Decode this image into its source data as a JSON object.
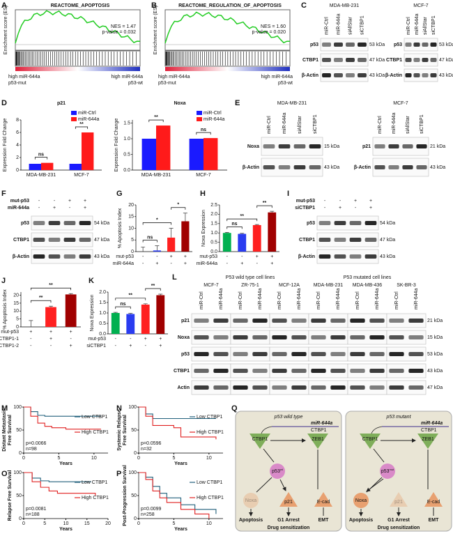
{
  "panels": {
    "A": {
      "label": "A",
      "title": "REACTOME_APOPTOSIS",
      "ylabel": "Enrichment score (ES)",
      "stats": [
        "NES = 1.47",
        "p-value = 0.032"
      ],
      "left": [
        "high miR-644a",
        "p53-mut"
      ],
      "right": [
        "high miR-644a",
        "p53-wt"
      ]
    },
    "B": {
      "label": "B",
      "title": "REACTOME_REGULATION_OF_APOPTOSIS",
      "ylabel": "Enrichment score (ES)",
      "stats": [
        "NES = 1.60",
        "p-value = 0.020"
      ],
      "left": [
        "high miR-644a",
        "p53-mut"
      ],
      "right": [
        "high miR-644a",
        "p53-wt"
      ]
    },
    "C": {
      "label": "C",
      "blots": [
        {
          "cell_line": "MDA-MB-231",
          "lanes": [
            "miR-Ctrl",
            "miR-644a",
            "siAllStar",
            "siCTBP1"
          ],
          "rows": [
            {
              "name": "p53",
              "size": "53 kDa"
            },
            {
              "name": "CTBP1",
              "size": "47 kDa"
            },
            {
              "name": "β-Actin",
              "size": "43 kDa"
            }
          ]
        },
        {
          "cell_line": "MCF-7",
          "lanes": [
            "miR-Ctrl",
            "miR-644a",
            "siAllStar",
            "siCTBP1"
          ],
          "rows": [
            {
              "name": "p53",
              "size": "53 kDa"
            },
            {
              "name": "CTBP1",
              "size": "47 kDa"
            },
            {
              "name": "β-Actin",
              "size": "43 kDa"
            }
          ]
        }
      ]
    },
    "D": {
      "label": "D",
      "charts": [
        {
          "type": "bar",
          "title": "p21",
          "ylabel": "Expression Fold Change",
          "categories": [
            "MDA-MB-231",
            "MCF-7"
          ],
          "series": [
            {
              "name": "miR-Ctrl",
              "color": "#1a1aff",
              "values": [
                1,
                1
              ]
            },
            {
              "name": "miR-644a",
              "color": "#ff1a1a",
              "values": [
                1.15,
                6
              ]
            }
          ],
          "ylim": [
            0,
            8
          ],
          "yticks": [
            0,
            2,
            4,
            6,
            8
          ],
          "annotations": [
            "ns",
            "**"
          ]
        },
        {
          "type": "bar",
          "title": "Noxa",
          "ylabel": "Expression Fold Change",
          "categories": [
            "MDA-MB-231",
            "MCF-7"
          ],
          "series": [
            {
              "name": "miR-Ctrl",
              "color": "#1a1aff",
              "values": [
                1,
                1
              ]
            },
            {
              "name": "miR-644a",
              "color": "#ff1a1a",
              "values": [
                1.42,
                1.02
              ]
            }
          ],
          "ylim": [
            0,
            1.6
          ],
          "yticks": [
            {
              "value": 0,
              "label": "0.0"
            },
            0.5,
            {
              "value": 1,
              "label": "1.0"
            },
            1.5
          ],
          "annotations": [
            "**",
            "ns"
          ]
        }
      ]
    },
    "E": {
      "label": "E",
      "blots": [
        {
          "cell_line": "MDA-MB-231",
          "lanes": [
            "miR-Ctrl",
            "miR-644a",
            "siAllStar",
            "siCTBP1"
          ],
          "rows": [
            {
              "name": "Noxa",
              "size": "15 kDa"
            },
            {
              "name": "β-Actin",
              "size": "43 kDa"
            }
          ]
        },
        {
          "cell_line": "MCF-7",
          "lanes": [
            "miR-Ctrl",
            "miR-644a",
            "siAllStar",
            "siCTBP1"
          ],
          "rows": [
            {
              "name": "p21",
              "size": "21 kDa"
            },
            {
              "name": "β-Actin",
              "size": "43 kDa"
            }
          ]
        }
      ]
    },
    "F": {
      "label": "F",
      "conditions": [
        {
          "name": "mut-p53",
          "signs": [
            "-",
            "-",
            "+",
            "+"
          ]
        },
        {
          "name": "miR-644a",
          "signs": [
            "-",
            "+",
            "-",
            "+"
          ]
        }
      ],
      "rows": [
        {
          "name": "p53",
          "size": "54 kDa"
        },
        {
          "name": "CTBP1",
          "size": "47 kDa"
        },
        {
          "name": "β-Actin",
          "size": "43 kDa"
        }
      ]
    },
    "G": {
      "label": "G",
      "chart_data": {
        "type": "bar",
        "ylabel": "% Apoptosis Index",
        "values": [
          0,
          0.5,
          6,
          13
        ],
        "errors": [
          2,
          2,
          4,
          3.5
        ],
        "colors": [
          "#00b050",
          "#2a3cf0",
          "#ff2020",
          "#a00000"
        ],
        "conditions": [
          {
            "name": "mut-p53",
            "signs": [
              "-",
              "-",
              "+",
              "+"
            ]
          },
          {
            "name": "miR-644a",
            "signs": [
              "-",
              "+",
              "-",
              "+"
            ]
          }
        ],
        "ylim": [
          0,
          20
        ],
        "yticks": [
          0,
          5,
          10,
          15,
          20
        ],
        "annotations": [
          "ns",
          "*",
          "*"
        ]
      }
    },
    "H": {
      "label": "H",
      "chart_data": {
        "type": "bar",
        "ylabel": "Noxa Expression",
        "values": [
          1,
          0.95,
          1.42,
          2.1
        ],
        "errors": [
          0.03,
          0.03,
          0.03,
          0.06
        ],
        "colors": [
          "#00b050",
          "#2a3cf0",
          "#ff2020",
          "#a00000"
        ],
        "conditions": [
          {
            "name": "mut-p53",
            "signs": [
              "-",
              "-",
              "+",
              "+"
            ]
          },
          {
            "name": "miR-644a",
            "signs": [
              "-",
              "+",
              "-",
              "+"
            ]
          }
        ],
        "ylim": [
          0,
          2.5
        ],
        "yticks": [
          {
            "value": 0,
            "label": "0.0"
          },
          0.5,
          {
            "value": 1,
            "label": "1.0"
          },
          1.5,
          {
            "value": 2,
            "label": "2.0"
          },
          2.5
        ],
        "annotations": [
          "ns",
          "**",
          "**"
        ]
      }
    },
    "I": {
      "label": "I",
      "conditions": [
        {
          "name": "mut-p53",
          "signs": [
            "-",
            "-",
            "+",
            "+"
          ]
        },
        {
          "name": "siCTBP1",
          "signs": [
            "-",
            "+",
            "-",
            "+"
          ]
        }
      ],
      "rows": [
        {
          "name": "p53",
          "size": "54 kDa"
        },
        {
          "name": "CTBP1",
          "size": "47 kDa"
        },
        {
          "name": "β-Actin",
          "size": "43 kDa"
        }
      ]
    },
    "J": {
      "label": "J",
      "chart_data": {
        "type": "bar",
        "ylabel": "% Apoptosis Index",
        "values": [
          0,
          12.5,
          20.5
        ],
        "errors": [
          4,
          0.6,
          0.5
        ],
        "colors": [
          "#00b050",
          "#ff2020",
          "#a00000"
        ],
        "conditions": [
          {
            "name": "mut-p53",
            "signs": [
              "+",
              "+",
              "+"
            ]
          },
          {
            "name": "siCTBP1-1",
            "signs": [
              "-",
              "+",
              "-"
            ]
          },
          {
            "name": "siCTBP1-2",
            "signs": [
              "-",
              "-",
              "+"
            ]
          }
        ],
        "ylim": [
          0,
          22
        ],
        "yticks": [
          0,
          5,
          10,
          15,
          20
        ],
        "annotations": [
          "**",
          "**"
        ]
      }
    },
    "K": {
      "label": "K",
      "chart_data": {
        "type": "bar",
        "ylabel": "Noxa Expression",
        "values": [
          1,
          0.95,
          1.4,
          1.85
        ],
        "errors": [
          0.03,
          0.03,
          0.04,
          0.05
        ],
        "colors": [
          "#00b050",
          "#2a3cf0",
          "#ff2020",
          "#a00000"
        ],
        "conditions": [
          {
            "name": "mut-p53",
            "signs": [
              "-",
              "-",
              "+",
              "+"
            ]
          },
          {
            "name": "siCTBP1",
            "signs": [
              "-",
              "+",
              "-",
              "+"
            ]
          }
        ],
        "ylim": [
          0,
          2
        ],
        "yticks": [
          {
            "value": 0,
            "label": "0.0"
          },
          0.5,
          {
            "value": 1,
            "label": "1.0"
          },
          1.5,
          {
            "value": 2,
            "label": "2.0"
          }
        ],
        "annotations": [
          "ns",
          "**",
          "**"
        ]
      }
    },
    "L": {
      "label": "L",
      "groups": [
        "P53 wild type cell lines",
        "P53 mutated cell lines"
      ],
      "cell_lines": [
        "MCF-7",
        "ZR-75-1",
        "MCF-12A",
        "MDA-MB-231",
        "MDA-MB-436",
        "SK-BR-3"
      ],
      "lanes": [
        "miR-Ctrl",
        "miR-644a"
      ],
      "rows": [
        {
          "name": "p21",
          "size": "21 kDa"
        },
        {
          "name": "Noxa",
          "size": "15 kDa"
        },
        {
          "name": "p53",
          "size": "53 kDa"
        },
        {
          "name": "CTBP1",
          "size": "43 kDa"
        },
        {
          "name": "Actin",
          "size": "47 kDa"
        }
      ]
    },
    "M": {
      "label": "M",
      "chart_data": {
        "type": "line",
        "ylabel": [
          "Distant Metastasis",
          "Free Survival"
        ],
        "xlabel": "Years",
        "annotations": [
          "p=0.0066",
          "n=98"
        ],
        "xlim": [
          0,
          12
        ],
        "xticks": [
          0,
          5,
          10
        ],
        "ylim": [
          0,
          100
        ],
        "yticks": [
          0,
          50,
          100
        ],
        "series": [
          {
            "name": "Low CTBP1",
            "color": "#1f5f7a",
            "x": [
              0,
              1,
              2,
              3,
              4,
              5,
              11
            ],
            "values": [
              100,
              90,
              82,
              80,
              80,
              80,
              80
            ]
          },
          {
            "name": "High CTBP1",
            "color": "#e02020",
            "x": [
              0,
              1,
              2,
              3,
              4,
              6,
              11
            ],
            "values": [
              100,
              80,
              65,
              58,
              55,
              52,
              52
            ]
          }
        ]
      }
    },
    "N": {
      "label": "N",
      "chart_data": {
        "type": "line",
        "ylabel": [
          "Systemic Relapse",
          "Free Survival"
        ],
        "xlabel": "Years",
        "annotations": [
          "p=0.0596",
          "n=32"
        ],
        "xlim": [
          0,
          12
        ],
        "xticks": [
          0,
          5,
          10
        ],
        "ylim": [
          0,
          100
        ],
        "yticks": [
          0,
          50,
          100
        ],
        "series": [
          {
            "name": "Low CTBP1",
            "color": "#1f5f7a",
            "x": [
              0,
              1,
              2,
              11
            ],
            "values": [
              100,
              85,
              75,
              75
            ]
          },
          {
            "name": "High CTBP1",
            "color": "#e02020",
            "x": [
              0,
              1,
              2,
              5,
              6,
              11
            ],
            "values": [
              100,
              80,
              60,
              55,
              35,
              30
            ]
          }
        ]
      }
    },
    "O": {
      "label": "O",
      "chart_data": {
        "type": "line",
        "ylabel": [
          "Relapse Free Survival"
        ],
        "xlabel": "Years",
        "annotations": [
          "p=0.0081",
          "n=188"
        ],
        "xlim": [
          0,
          20
        ],
        "xticks": [
          0,
          5,
          10,
          15,
          20
        ],
        "ylim": [
          0,
          100
        ],
        "yticks": [
          0,
          50,
          100
        ],
        "series": [
          {
            "name": "Low CTBP1",
            "color": "#1f5f7a",
            "x": [
              0,
              2,
              4,
              6,
              16
            ],
            "values": [
              100,
              88,
              82,
              80,
              80
            ]
          },
          {
            "name": "High CTBP1",
            "color": "#e02020",
            "x": [
              0,
              2,
              4,
              6,
              8,
              17
            ],
            "values": [
              100,
              80,
              68,
              60,
              55,
              50
            ]
          }
        ]
      }
    },
    "P": {
      "label": "P",
      "chart_data": {
        "type": "line",
        "ylabel": [
          "Post-Progression Survival"
        ],
        "xlabel": "Years",
        "annotations": [
          "p=0.0099",
          "n=258"
        ],
        "xlim": [
          0,
          12
        ],
        "xticks": [
          0,
          5,
          10
        ],
        "ylim": [
          0,
          100
        ],
        "yticks": [
          0,
          50,
          100
        ],
        "series": [
          {
            "name": "Low CTBP1",
            "color": "#1f5f7a",
            "x": [
              0,
              1,
              2,
              3,
              4,
              6,
              8,
              11
            ],
            "values": [
              100,
              90,
              70,
              55,
              45,
              30,
              20,
              10
            ]
          },
          {
            "name": "High CTBP1",
            "color": "#e02020",
            "x": [
              0,
              1,
              2,
              3,
              4,
              6,
              8,
              10
            ],
            "values": [
              100,
              85,
              60,
              45,
              35,
              20,
              10,
              0
            ]
          }
        ]
      }
    },
    "Q": {
      "label": "Q",
      "sides": [
        {
          "title": "p53 wild type",
          "mirna": "miR-644a",
          "gene": "CTBP1",
          "nodes": [
            "CTBP1",
            "ZEB1",
            {
              "text": "p53",
              "sup": "wt"
            },
            "Noxa",
            "p21",
            "E-cad"
          ],
          "outcomes": [
            "Apoptosis",
            "G1 Arrest",
            "EMT"
          ],
          "result": "Drug sensitization"
        },
        {
          "title": "p53 mutant",
          "mirna": "miR-644a",
          "gene": "CTBP1",
          "nodes": [
            "CTBP1",
            "ZEB1",
            {
              "text": "p53",
              "sup": "mut"
            },
            "Noxa",
            "p21",
            "E-cad"
          ],
          "outcomes": [
            "Apoptosis",
            "G1 Arrest",
            "EMT"
          ],
          "result": "Drug sensitization"
        }
      ]
    }
  }
}
